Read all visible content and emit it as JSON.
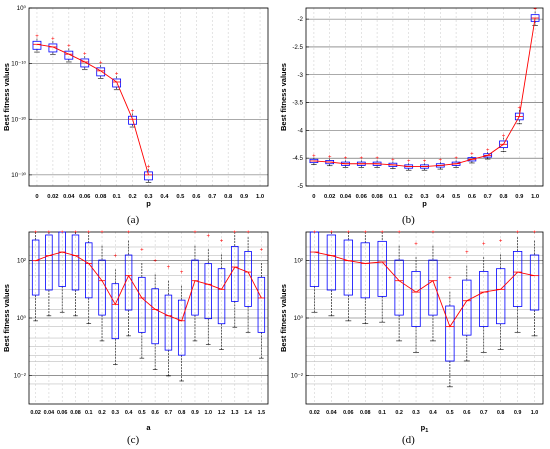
{
  "figure": {
    "captions": [
      "(a)",
      "(b)",
      "(c)",
      "(d)"
    ]
  },
  "chart_data": [
    {
      "type": "box",
      "title": "",
      "xlabel": "p",
      "ylabel": "Best fitness values",
      "yscale": "log",
      "ylim": [
        1e-32,
        1
      ],
      "yticks": [
        1,
        1e-10,
        1e-20,
        1e-30
      ],
      "ytick_labels": [
        "10^0",
        "10^-10",
        "10^-20",
        "10^-30"
      ],
      "categories": [
        "0",
        "0.02",
        "0.04",
        "0.06",
        "0.08",
        "0.1",
        "0.2",
        "0.3",
        "0.4",
        "0.5",
        "0.6",
        "0.7",
        "0.8",
        "0.9",
        "1.0"
      ],
      "medians": [
        3e-07,
        1e-07,
        5e-09,
        2e-10,
        5e-12,
        5e-14,
        1e-20,
        1e-30,
        null,
        null,
        null,
        null,
        null,
        null,
        null
      ],
      "line_color": "#ff0000",
      "box_color": "#0000ff",
      "grid": true
    },
    {
      "type": "box",
      "title": "",
      "xlabel": "p",
      "ylabel": "Best fitness values",
      "yscale": "linear",
      "ylim": [
        -5,
        -1.8
      ],
      "yticks": [
        -2,
        -2.5,
        -3,
        -3.5,
        -4,
        -4.5,
        -5
      ],
      "categories": [
        "0",
        "0.02",
        "0.04",
        "0.06",
        "0.08",
        "0.1",
        "0.2",
        "0.3",
        "0.4",
        "0.5",
        "0.6",
        "0.7",
        "0.8",
        "0.9",
        "1.0"
      ],
      "medians": [
        -4.55,
        -4.57,
        -4.6,
        -4.6,
        -4.6,
        -4.62,
        -4.65,
        -4.65,
        -4.63,
        -4.6,
        -4.52,
        -4.45,
        -4.25,
        -3.75,
        -1.98
      ],
      "line_color": "#ff0000",
      "box_color": "#0000ff",
      "grid": true
    },
    {
      "type": "box",
      "title": "",
      "xlabel": "a",
      "ylabel": "Best fitness values",
      "yscale": "log",
      "ylim": [
        0.001,
        1000
      ],
      "yticks": [
        100,
        1,
        0.01
      ],
      "ytick_labels": [
        "10^2",
        "10^0",
        "10^-2"
      ],
      "categories": [
        "0.02",
        "0.04",
        "0.06",
        "0.08",
        "0.1",
        "0.2",
        "0.3",
        "0.4",
        "0.5",
        "0.6",
        "0.7",
        "0.8",
        "0.9",
        "1.0",
        "1.2",
        "1.3",
        "1.4",
        "1.5"
      ],
      "medians": [
        100,
        150,
        200,
        150,
        80,
        20,
        3,
        30,
        5,
        2,
        1.2,
        0.8,
        20,
        15,
        10,
        60,
        40,
        5
      ],
      "line_color": "#ff0000",
      "box_color": "#0000ff",
      "grid": true
    },
    {
      "type": "box",
      "title": "",
      "xlabel": "p_1",
      "ylabel": "Best fitness values",
      "yscale": "log",
      "ylim": [
        0.001,
        1000
      ],
      "yticks": [
        100,
        1,
        0.01
      ],
      "ytick_labels": [
        "10^2",
        "10^0",
        "10^-2"
      ],
      "categories": [
        "0.02",
        "0.04",
        "0.06",
        "0.08",
        "0.1",
        "0.2",
        "0.3",
        "0.4",
        "0.5",
        "0.6",
        "0.7",
        "0.8",
        "0.9",
        "1.0"
      ],
      "medians": [
        200,
        150,
        100,
        80,
        90,
        20,
        8,
        20,
        0.5,
        4,
        8,
        10,
        40,
        30
      ],
      "line_color": "#ff0000",
      "box_color": "#0000ff",
      "grid": true
    }
  ]
}
